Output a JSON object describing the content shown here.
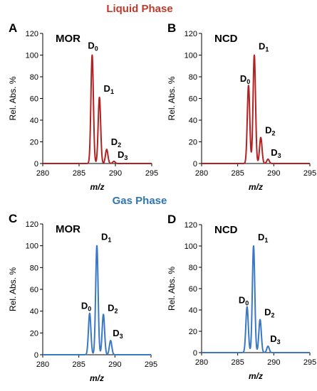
{
  "headings": {
    "liquid": {
      "text": "Liquid Phase",
      "color": "#c0392b"
    },
    "gas": {
      "text": "Gas Phase",
      "color": "#2e75b6"
    }
  },
  "chart_data": [
    {
      "type": "line",
      "panel": "A",
      "name": "MOR",
      "color": "#b22222",
      "xlabel": "m/z",
      "ylabel": "Rel. Abs. %",
      "xlim": [
        280,
        295
      ],
      "ylim": [
        0,
        120
      ],
      "xticks": [
        280,
        285,
        290,
        295
      ],
      "yticks": [
        0,
        20,
        40,
        60,
        80,
        100,
        120
      ],
      "peaks": [
        {
          "label": "D",
          "sub": "0",
          "x": 286.8,
          "y": 100
        },
        {
          "label": "D",
          "sub": "1",
          "x": 287.8,
          "y": 61
        },
        {
          "label": "D",
          "sub": "2",
          "x": 288.8,
          "y": 13
        },
        {
          "label": "D",
          "sub": "3",
          "x": 289.8,
          "y": 2
        }
      ]
    },
    {
      "type": "line",
      "panel": "B",
      "name": "NCD",
      "color": "#b22222",
      "xlabel": "m/z",
      "ylabel": "Rel. Abs. %",
      "xlim": [
        280,
        295
      ],
      "ylim": [
        0,
        120
      ],
      "xticks": [
        280,
        285,
        290,
        295
      ],
      "yticks": [
        0,
        20,
        40,
        60,
        80,
        100,
        120
      ],
      "peaks": [
        {
          "label": "D",
          "sub": "0",
          "x": 286.5,
          "y": 72
        },
        {
          "label": "D",
          "sub": "1",
          "x": 287.3,
          "y": 100
        },
        {
          "label": "D",
          "sub": "2",
          "x": 288.2,
          "y": 24
        },
        {
          "label": "D",
          "sub": "3",
          "x": 289.2,
          "y": 4
        }
      ]
    },
    {
      "type": "line",
      "panel": "C",
      "name": "MOR",
      "color": "#3a78c2",
      "xlabel": "m/z",
      "ylabel": "Rel. Abs. %",
      "xlim": [
        280,
        295
      ],
      "ylim": [
        0,
        120
      ],
      "xticks": [
        280,
        285,
        290,
        295
      ],
      "yticks": [
        0,
        20,
        40,
        60,
        80,
        100,
        120
      ],
      "peaks": [
        {
          "label": "D",
          "sub": "0",
          "x": 286.5,
          "y": 38
        },
        {
          "label": "D",
          "sub": "1",
          "x": 287.5,
          "y": 100
        },
        {
          "label": "D",
          "sub": "2",
          "x": 288.4,
          "y": 37
        },
        {
          "label": "D",
          "sub": "3",
          "x": 289.4,
          "y": 13
        }
      ]
    },
    {
      "type": "line",
      "panel": "D",
      "name": "NCD",
      "color": "#3a78c2",
      "xlabel": "m/z",
      "ylabel": "Rel. Abs. %",
      "xlim": [
        280,
        295
      ],
      "ylim": [
        0,
        120
      ],
      "xticks": [
        280,
        285,
        290,
        295
      ],
      "yticks": [
        0,
        20,
        40,
        60,
        80,
        100,
        120
      ],
      "peaks": [
        {
          "label": "D",
          "sub": "0",
          "x": 286.3,
          "y": 43
        },
        {
          "label": "D",
          "sub": "1",
          "x": 287.2,
          "y": 100
        },
        {
          "label": "D",
          "sub": "2",
          "x": 288.1,
          "y": 31
        },
        {
          "label": "D",
          "sub": "3",
          "x": 289.2,
          "y": 6
        }
      ]
    }
  ]
}
